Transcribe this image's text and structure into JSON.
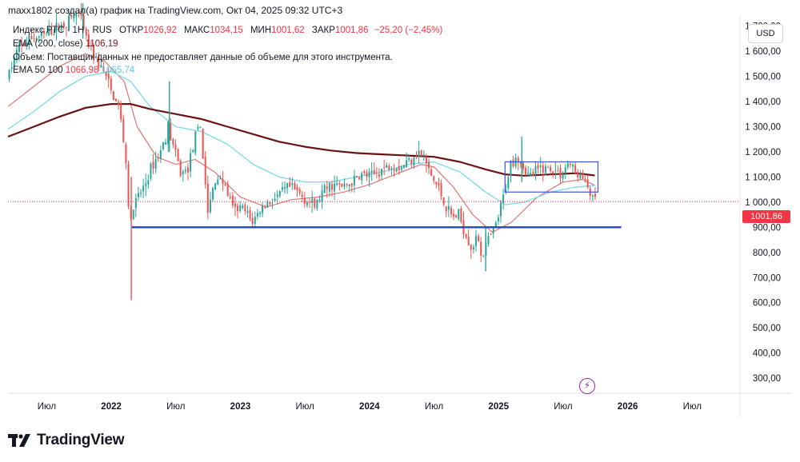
{
  "header": {
    "credit": "maxx1802 создал(а) график на TradingView.com, Окт 04, 2025 09:32 UTC+3"
  },
  "legend": {
    "symbol": "Индекс РТС · 1Н · RUS",
    "open_label": "ОТКР",
    "open_value": "1026,92",
    "high_label": "МАКС",
    "high_value": "1034,15",
    "low_label": "МИН",
    "low_value": "1001,62",
    "close_label": "ЗАКР",
    "close_value": "1001,86",
    "change": "−25,20 (−2,45%)",
    "ema200_label": "EMA (200, close)",
    "ema200_value": "1106,19",
    "volume_note": "Объем: Поставщик данных не предоставляет данные об объеме для этого инструмента.",
    "ema_pair_label": "EMA 50 100",
    "ema50_value": "1066,98",
    "ema100_value": "1065,74"
  },
  "currency_button": "USD",
  "price_tag": "1001,86",
  "logo_text": "TradingView",
  "colors": {
    "up": "#26a69a",
    "down": "#ef5350",
    "ema50": "#e57373",
    "ema100": "#7fdbe8",
    "ema200": "#6b1212",
    "support": "#2342c8",
    "range_box": "#3a56d8",
    "last_price": "#f23645"
  },
  "chart_data": {
    "type": "candlestick",
    "title": "Индекс РТС, 1Н",
    "x_tick_labels": [
      "Июл",
      "2022",
      "Июл",
      "2023",
      "Июл",
      "2024",
      "Июл",
      "2025",
      "Июл",
      "2026",
      "Июл"
    ],
    "x_tick_dates": [
      2021.5,
      2022.0,
      2022.5,
      2023.0,
      2023.5,
      2024.0,
      2024.5,
      2025.0,
      2025.5,
      2026.0,
      2026.5
    ],
    "y_tick_labels": [
      "300,00",
      "400,00",
      "500,00",
      "600,00",
      "700,00",
      "800,00",
      "900,00",
      "1 000,00",
      "1 100,00",
      "1 200,00",
      "1 300,00",
      "1 400,00",
      "1 500,00",
      "1 600,00",
      "1 700,00"
    ],
    "y_tick_values": [
      300,
      400,
      500,
      600,
      700,
      800,
      900,
      1000,
      1100,
      1200,
      1300,
      1400,
      1500,
      1600,
      1700
    ],
    "x_range": [
      2021.2,
      2026.87
    ],
    "y_range": [
      240,
      1740
    ],
    "last_price": 1001.86,
    "price_path": [
      [
        2021.2,
        1490
      ],
      [
        2021.28,
        1600
      ],
      [
        2021.38,
        1650
      ],
      [
        2021.48,
        1660
      ],
      [
        2021.58,
        1690
      ],
      [
        2021.68,
        1720
      ],
      [
        2021.75,
        1760
      ],
      [
        2021.82,
        1640
      ],
      [
        2021.9,
        1560
      ],
      [
        2021.96,
        1510
      ],
      [
        2022.02,
        1420
      ],
      [
        2022.07,
        1380
      ],
      [
        2022.12,
        1180
      ],
      [
        2022.155,
        890
      ],
      [
        2022.18,
        980
      ],
      [
        2022.22,
        1020
      ],
      [
        2022.28,
        1080
      ],
      [
        2022.33,
        1150
      ],
      [
        2022.4,
        1210
      ],
      [
        2022.45,
        1300
      ],
      [
        2022.5,
        1200
      ],
      [
        2022.55,
        1110
      ],
      [
        2022.6,
        1130
      ],
      [
        2022.65,
        1240
      ],
      [
        2022.7,
        1300
      ],
      [
        2022.73,
        1120
      ],
      [
        2022.76,
        950
      ],
      [
        2022.8,
        1060
      ],
      [
        2022.85,
        1110
      ],
      [
        2022.9,
        1050
      ],
      [
        2022.96,
        960
      ],
      [
        2023.0,
        980
      ],
      [
        2023.05,
        960
      ],
      [
        2023.1,
        920
      ],
      [
        2023.15,
        960
      ],
      [
        2023.22,
        1000
      ],
      [
        2023.3,
        1020
      ],
      [
        2023.38,
        1060
      ],
      [
        2023.45,
        1040
      ],
      [
        2023.52,
        1010
      ],
      [
        2023.58,
        980
      ],
      [
        2023.65,
        1040
      ],
      [
        2023.72,
        1070
      ],
      [
        2023.8,
        1060
      ],
      [
        2023.88,
        1080
      ],
      [
        2023.95,
        1110
      ],
      [
        2024.02,
        1100
      ],
      [
        2024.1,
        1130
      ],
      [
        2024.18,
        1150
      ],
      [
        2024.25,
        1140
      ],
      [
        2024.32,
        1170
      ],
      [
        2024.38,
        1200
      ],
      [
        2024.43,
        1180
      ],
      [
        2024.48,
        1110
      ],
      [
        2024.55,
        1050
      ],
      [
        2024.6,
        980
      ],
      [
        2024.65,
        940
      ],
      [
        2024.7,
        950
      ],
      [
        2024.75,
        880
      ],
      [
        2024.8,
        820
      ],
      [
        2024.85,
        860
      ],
      [
        2024.88,
        780
      ],
      [
        2024.92,
        840
      ],
      [
        2024.97,
        880
      ],
      [
        2025.02,
        960
      ],
      [
        2025.06,
        1050
      ],
      [
        2025.1,
        1150
      ],
      [
        2025.15,
        1190
      ],
      [
        2025.2,
        1140
      ],
      [
        2025.25,
        1100
      ],
      [
        2025.3,
        1120
      ],
      [
        2025.35,
        1140
      ],
      [
        2025.42,
        1130
      ],
      [
        2025.5,
        1110
      ],
      [
        2025.55,
        1160
      ],
      [
        2025.6,
        1120
      ],
      [
        2025.65,
        1100
      ],
      [
        2025.7,
        1060
      ],
      [
        2025.745,
        1002
      ]
    ],
    "extreme_wicks": [
      {
        "date": 2021.78,
        "high": 1790,
        "low": 1650
      },
      {
        "date": 2022.155,
        "high": 1100,
        "low": 610
      },
      {
        "date": 2022.45,
        "high": 1480,
        "low": 1200
      },
      {
        "date": 2024.9,
        "high": 900,
        "low": 725
      },
      {
        "date": 2025.18,
        "high": 1260,
        "low": 1080
      }
    ],
    "series": [
      {
        "name": "EMA 50",
        "values": [
          [
            2021.2,
            1380
          ],
          [
            2021.4,
            1460
          ],
          [
            2021.6,
            1540
          ],
          [
            2021.8,
            1590
          ],
          [
            2021.95,
            1560
          ],
          [
            2022.1,
            1480
          ],
          [
            2022.2,
            1300
          ],
          [
            2022.35,
            1180
          ],
          [
            2022.5,
            1150
          ],
          [
            2022.65,
            1170
          ],
          [
            2022.8,
            1120
          ],
          [
            2023.0,
            1020
          ],
          [
            2023.2,
            980
          ],
          [
            2023.4,
            1010
          ],
          [
            2023.6,
            1020
          ],
          [
            2023.8,
            1040
          ],
          [
            2024.0,
            1070
          ],
          [
            2024.2,
            1110
          ],
          [
            2024.4,
            1150
          ],
          [
            2024.5,
            1140
          ],
          [
            2024.65,
            1060
          ],
          [
            2024.8,
            950
          ],
          [
            2024.95,
            880
          ],
          [
            2025.1,
            920
          ],
          [
            2025.3,
            1020
          ],
          [
            2025.5,
            1080
          ],
          [
            2025.65,
            1090
          ],
          [
            2025.745,
            1067
          ]
        ]
      },
      {
        "name": "EMA 100",
        "values": [
          [
            2021.2,
            1290
          ],
          [
            2021.4,
            1360
          ],
          [
            2021.6,
            1440
          ],
          [
            2021.8,
            1500
          ],
          [
            2022.0,
            1520
          ],
          [
            2022.15,
            1480
          ],
          [
            2022.3,
            1380
          ],
          [
            2022.5,
            1300
          ],
          [
            2022.7,
            1280
          ],
          [
            2022.9,
            1230
          ],
          [
            2023.1,
            1150
          ],
          [
            2023.3,
            1100
          ],
          [
            2023.5,
            1080
          ],
          [
            2023.7,
            1080
          ],
          [
            2023.9,
            1100
          ],
          [
            2024.1,
            1120
          ],
          [
            2024.3,
            1150
          ],
          [
            2024.5,
            1160
          ],
          [
            2024.7,
            1120
          ],
          [
            2024.9,
            1040
          ],
          [
            2025.05,
            990
          ],
          [
            2025.2,
            1000
          ],
          [
            2025.4,
            1040
          ],
          [
            2025.6,
            1060
          ],
          [
            2025.745,
            1066
          ]
        ]
      },
      {
        "name": "EMA 200",
        "values": [
          [
            2021.2,
            1260
          ],
          [
            2021.4,
            1300
          ],
          [
            2021.6,
            1340
          ],
          [
            2021.8,
            1375
          ],
          [
            2022.0,
            1390
          ],
          [
            2022.15,
            1390
          ],
          [
            2022.3,
            1370
          ],
          [
            2022.5,
            1350
          ],
          [
            2022.7,
            1330
          ],
          [
            2022.9,
            1300
          ],
          [
            2023.1,
            1270
          ],
          [
            2023.3,
            1240
          ],
          [
            2023.5,
            1220
          ],
          [
            2023.7,
            1205
          ],
          [
            2023.9,
            1195
          ],
          [
            2024.1,
            1190
          ],
          [
            2024.3,
            1185
          ],
          [
            2024.5,
            1180
          ],
          [
            2024.7,
            1160
          ],
          [
            2024.9,
            1130
          ],
          [
            2025.05,
            1110
          ],
          [
            2025.2,
            1105
          ],
          [
            2025.4,
            1110
          ],
          [
            2025.6,
            1115
          ],
          [
            2025.745,
            1106
          ]
        ]
      }
    ],
    "annotations": {
      "support_level": 900,
      "support_x_range": [
        2022.16,
        2025.95
      ],
      "range_box": {
        "x_start": 2025.05,
        "x_end": 2025.77,
        "top": 1160,
        "bottom": 1040
      }
    }
  }
}
